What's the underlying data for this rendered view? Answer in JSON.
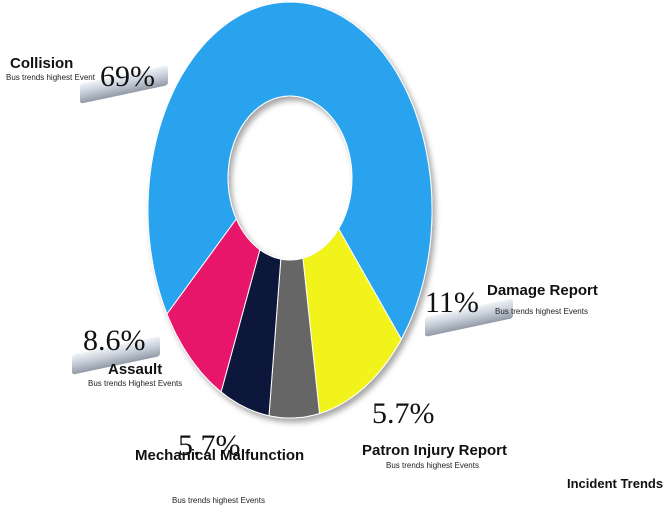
{
  "chart_data": {
    "type": "donut",
    "title": "Incident Trends",
    "categories": [
      "Collision",
      "Damage Report",
      "Patron Injury Report",
      "Mechanical Malfunction",
      "Assault"
    ],
    "values": [
      69,
      11,
      5.7,
      5.7,
      8.6
    ],
    "value_labels": [
      "69%",
      "11%",
      "5.7%",
      "5.7%",
      "8.6%"
    ],
    "subtitles": [
      "Bus trends highest Event",
      "Bus trends highest Events",
      "Bus trends highest Events",
      "Bus trends highest Events",
      "Bus trends Highest Events"
    ],
    "colors": [
      "#2aa3ef",
      "#f3f31c",
      "#666666",
      "#11163a",
      "#e8176b"
    ]
  }
}
